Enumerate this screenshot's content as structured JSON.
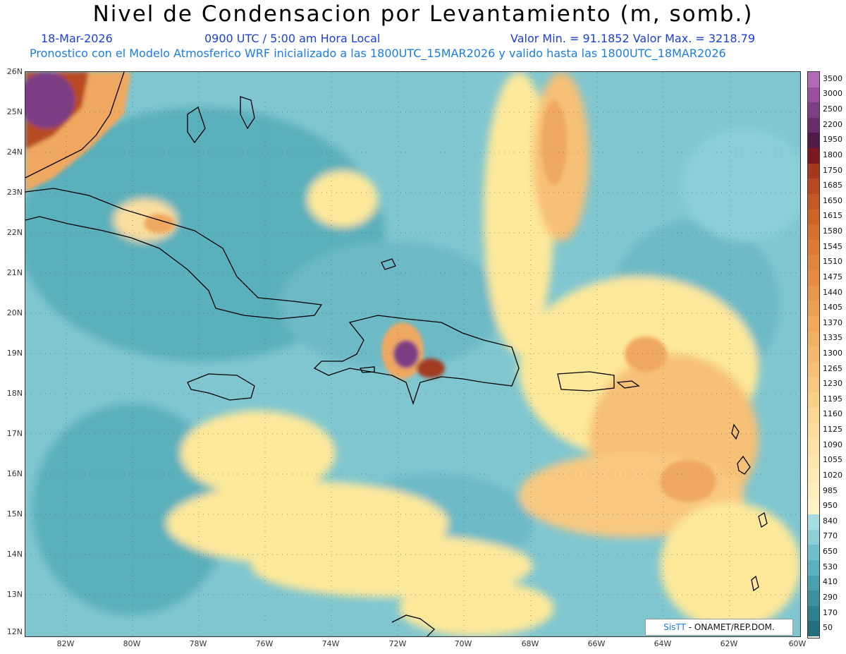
{
  "header": {
    "title": "Nivel de Condensacion por Levantamiento (m, somb.)",
    "date": "18-Mar-2026",
    "time": "0900 UTC / 5:00 am Hora Local",
    "minmax": "Valor Min. = 91.1852  Valor Max. = 3218.79",
    "model_line": "Pronostico con el Modelo Atmosferico WRF inicializado a las 1800UTC_15MAR2026 y valido hasta las  1800UTC_18MAR2026"
  },
  "map": {
    "lat_labels": [
      "26N",
      "25N",
      "24N",
      "23N",
      "22N",
      "21N",
      "20N",
      "19N",
      "18N",
      "17N",
      "16N",
      "15N",
      "14N",
      "13N",
      "12N"
    ],
    "lon_labels": [
      "82W",
      "80W",
      "78W",
      "76W",
      "74W",
      "72W",
      "70W",
      "68W",
      "66W",
      "64W",
      "62W",
      "60W"
    ],
    "colors": {
      "ocean_low": "#5ab0c0",
      "ocean_mid": "#8dcfd8",
      "yellow": "#fde89a",
      "orange": "#f0a860",
      "dark": "#6a2a50",
      "coast": "#000000"
    }
  },
  "colorbar": {
    "labels": [
      "3500",
      "3000",
      "2500",
      "2200",
      "1950",
      "1800",
      "1750",
      "1685",
      "1650",
      "1615",
      "1580",
      "1545",
      "1510",
      "1475",
      "1440",
      "1405",
      "1370",
      "1335",
      "1300",
      "1265",
      "1230",
      "1195",
      "1160",
      "1125",
      "1090",
      "1055",
      "1020",
      "985",
      "950",
      "840",
      "770",
      "650",
      "530",
      "410",
      "290",
      "170",
      "50"
    ],
    "colors": [
      "#b06ab8",
      "#9a4f9e",
      "#7d3e84",
      "#6a2d6a",
      "#4e1a48",
      "#7a1a1a",
      "#a33a20",
      "#b84820",
      "#c05828",
      "#cc6428",
      "#d47032",
      "#dc7a38",
      "#e08440",
      "#e48c46",
      "#e8964e",
      "#ec9e56",
      "#f0a85e",
      "#f2b066",
      "#f4b86e",
      "#f6c076",
      "#f8c880",
      "#f9d08a",
      "#fad894",
      "#fbde9e",
      "#fce2a6",
      "#fde6ae",
      "#fdeab6",
      "#fdeebe",
      "#fef2c6",
      "#a6dde5",
      "#8dcfd8",
      "#72bfca",
      "#5ab0bc",
      "#4aa0ae",
      "#3d90a0",
      "#2f8090",
      "#246e80"
    ]
  },
  "credit": {
    "sis": "SisTT",
    "rest": " - ONAMET/REP.DOM."
  }
}
